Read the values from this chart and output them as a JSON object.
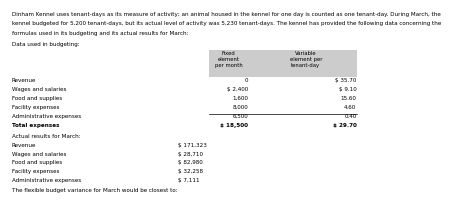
{
  "intro_line1": "Dinham Kennel uses tenant-days as its measure of activity; an animal housed in the kennel for one day is counted as one tenant-day. During March, the",
  "intro_line2": "kennel budgeted for 5,200 tenant-days, but its actual level of activity was 5,230 tenant-days. The kennel has provided the following data concerning the",
  "intro_line3": "formulas used in its budgeting and its actual results for March:",
  "data_used_label": "Data used in budgeting:",
  "header_fixed": "Fixed\nelement\nper month",
  "header_variable": "Variable\nelement per\ntenant-day",
  "budget_rows": [
    [
      "Revenue",
      "0",
      "$ 35.70"
    ],
    [
      "Wages and salaries",
      "$ 2,400",
      "$ 9.10"
    ],
    [
      "Food and supplies",
      "1,600",
      "15.60"
    ],
    [
      "Facility expenses",
      "8,000",
      "4.60"
    ],
    [
      "Administrative expenses",
      "6,500",
      "0.40"
    ],
    [
      "Total expenses",
      "$ 18,500",
      "$ 29.70"
    ]
  ],
  "actual_label": "Actual results for March:",
  "actual_rows": [
    [
      "Revenue",
      "$ 171,323"
    ],
    [
      "Wages and salaries",
      "$ 28,710"
    ],
    [
      "Food and supplies",
      "$ 82,980"
    ],
    [
      "Facility expenses",
      "$ 32,258"
    ],
    [
      "Administrative expenses",
      "$ 7,111"
    ]
  ],
  "footer_text": "The flexible budget variance for March would be closest to:",
  "bg_color": "#ffffff",
  "text_color": "#000000",
  "table_header_bg": "#cccccc",
  "font_size": 4.6,
  "font_family": "DejaVu Sans"
}
